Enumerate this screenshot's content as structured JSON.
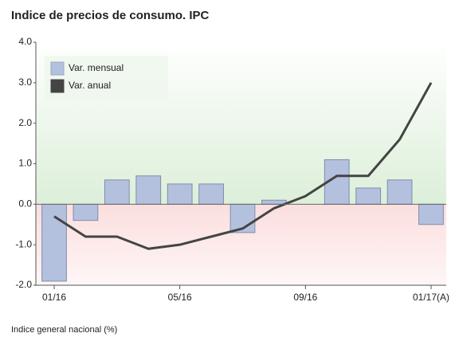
{
  "chart_data": {
    "type": "bar",
    "title": "Indice de precios de consumo. IPC",
    "footnote": "Indice general nacional (%)",
    "categories": [
      "01/16",
      null,
      null,
      null,
      "05/16",
      null,
      null,
      null,
      "09/16",
      null,
      null,
      null,
      "01/17(A)"
    ],
    "series": [
      {
        "name": "Var. mensual",
        "type": "bar",
        "color": "#b4c1de",
        "values": [
          -1.9,
          -0.4,
          0.6,
          0.7,
          0.5,
          0.5,
          -0.7,
          0.1,
          0.0,
          1.1,
          0.4,
          0.6,
          -0.5
        ]
      },
      {
        "name": "Var. anual",
        "type": "line",
        "color": "#444444",
        "values": [
          -0.3,
          -0.8,
          -0.8,
          -1.1,
          -1.0,
          -0.8,
          -0.6,
          -0.1,
          0.2,
          0.7,
          0.7,
          1.6,
          3.0
        ]
      }
    ],
    "ylim": [
      -2.0,
      4.0
    ],
    "yticks": [
      {
        "value": -2.0,
        "label": "-2.0"
      },
      {
        "value": -1.0,
        "label": "-1.0"
      },
      {
        "value": 0.0,
        "label": "0.0"
      },
      {
        "value": 1.0,
        "label": "1.0"
      },
      {
        "value": 2.0,
        "label": "2.0"
      },
      {
        "value": 3.0,
        "label": "3.0"
      },
      {
        "value": 4.0,
        "label": "4.0"
      }
    ],
    "grid": false,
    "legend": "upper left"
  }
}
